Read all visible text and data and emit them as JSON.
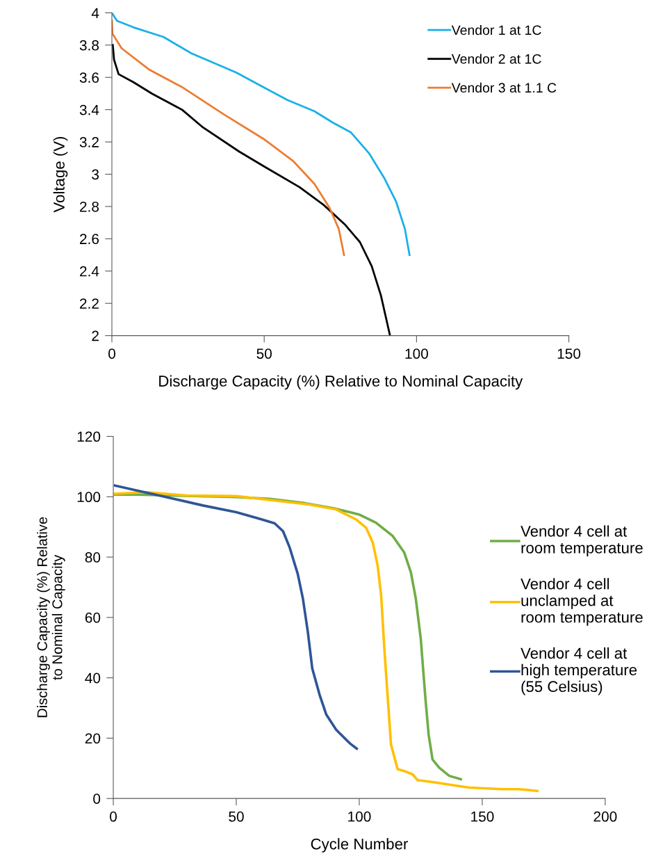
{
  "chart_data": [
    {
      "type": "line",
      "xlabel": "Discharge Capacity (%) Relative to Nominal Capacity",
      "ylabel": "Voltage (V)",
      "xlim": [
        0,
        150
      ],
      "xticks": [
        0,
        50,
        100,
        150
      ],
      "ylim": [
        2,
        4
      ],
      "yticks": [
        2,
        {
          "value": 2.2,
          "label": "2.2"
        },
        {
          "value": 2.4,
          "label": "2.4"
        },
        {
          "value": 2.6,
          "label": "2.6"
        },
        {
          "value": 2.8,
          "label": "2.8"
        },
        3,
        {
          "value": 3.2,
          "label": "3.2"
        },
        {
          "value": 3.4,
          "label": "3.4"
        },
        {
          "value": 3.6,
          "label": "3.6"
        },
        {
          "value": 3.8,
          "label": "3.8"
        },
        4
      ],
      "grid": false,
      "legend": "top right",
      "marker": "none",
      "line_style": "solid",
      "series": [
        {
          "name": "Vendor 1 at 1C",
          "color": "#1ab0e8",
          "x": [
            0,
            1.7,
            7.1,
            17,
            26,
            40.8,
            49.7,
            57.6,
            66.5,
            72.5,
            78.4,
            84.4,
            89.3,
            93.3,
            96.2,
            97.7
          ],
          "values": [
            4.0,
            3.95,
            3.91,
            3.85,
            3.75,
            3.63,
            3.54,
            3.46,
            3.39,
            3.32,
            3.26,
            3.13,
            2.98,
            2.83,
            2.66,
            2.5
          ]
        },
        {
          "name": "Vendor 2 at 1C",
          "color": "#000000",
          "x": [
            0.3,
            0.7,
            2.2,
            7.1,
            13.1,
            18,
            23,
            29.9,
            41.8,
            50.7,
            61.6,
            69.5,
            76.4,
            81.4,
            85.3,
            88.3,
            91.3
          ],
          "values": [
            3.8,
            3.71,
            3.62,
            3.57,
            3.5,
            3.45,
            3.4,
            3.29,
            3.14,
            3.04,
            2.92,
            2.81,
            2.69,
            2.58,
            2.43,
            2.25,
            2.0
          ]
        },
        {
          "name": "Vendor 3 at 1.1 C",
          "color": "#ed7d31",
          "x": [
            0,
            0.2,
            3.2,
            12.1,
            23,
            36.8,
            49.7,
            59.6,
            66.5,
            71.5,
            74.5,
            76.2
          ],
          "values": [
            3.95,
            3.87,
            3.78,
            3.65,
            3.54,
            3.37,
            3.22,
            3.08,
            2.94,
            2.79,
            2.66,
            2.5
          ]
        }
      ]
    },
    {
      "type": "line",
      "xlabel": "Cycle Number",
      "ylabel": "Discharge Capacity (%) Relative\nto Nominal Capacity",
      "xlim": [
        0,
        200
      ],
      "xticks": [
        0,
        50,
        100,
        150,
        200
      ],
      "ylim": [
        0,
        120
      ],
      "yticks": [
        0,
        20,
        40,
        60,
        80,
        100,
        120
      ],
      "grid": false,
      "legend": "right",
      "marker": "none",
      "line_style": "solid",
      "series": [
        {
          "name": "Vendor 4 cell at\nroom temperature",
          "color": "#70ad47",
          "x": [
            0.7,
            9.5,
            50,
            63.6,
            77,
            90.6,
            100,
            106.8,
            113.6,
            118.3,
            121,
            123,
            125,
            126.9,
            128.2,
            129.8,
            132.5,
            136.6,
            141.3
          ],
          "values": [
            100.7,
            100.7,
            99.9,
            99.3,
            98,
            96,
            94.1,
            91.4,
            87,
            81.5,
            74.9,
            66.2,
            53,
            33.2,
            21.2,
            12.9,
            10.2,
            7.5,
            6.4
          ]
        },
        {
          "name": "Vendor 4 cell\nunclamped at\nroom temperature",
          "color": "#ffc000",
          "x": [
            0.7,
            13.5,
            29.8,
            50,
            66.3,
            79.8,
            90.6,
            98.7,
            102.8,
            105.5,
            107.5,
            108.9,
            110.2,
            111.6,
            112.9,
            115.6,
            118.3,
            121.7,
            123.7,
            131.2,
            138,
            144.7,
            158.2,
            164.9,
            172.4
          ],
          "values": [
            101,
            101.5,
            100.4,
            100.2,
            98.7,
            97.4,
            95.8,
            92.5,
            89.7,
            84.8,
            77.1,
            67.3,
            49.7,
            33.2,
            17.9,
            9.7,
            9.1,
            8,
            6.1,
            5.3,
            4.4,
            3.6,
            3.1,
            3.1,
            2.5
          ]
        },
        {
          "name": "Vendor 4 cell at\nhigh temperature\n(55 Celsius)",
          "color": "#2f5597",
          "x": [
            0.7,
            9.5,
            23,
            36.5,
            50,
            59.5,
            65.6,
            69,
            71.7,
            75,
            77.1,
            79.1,
            80.9,
            83.9,
            86.6,
            90.6,
            96,
            99
          ],
          "values": [
            103.7,
            102.1,
            99.6,
            97.1,
            94.9,
            92.7,
            91.2,
            88.6,
            83.2,
            74.4,
            66.2,
            55.2,
            43.1,
            34.3,
            27.8,
            22.8,
            18.4,
            16.5
          ]
        }
      ]
    }
  ]
}
